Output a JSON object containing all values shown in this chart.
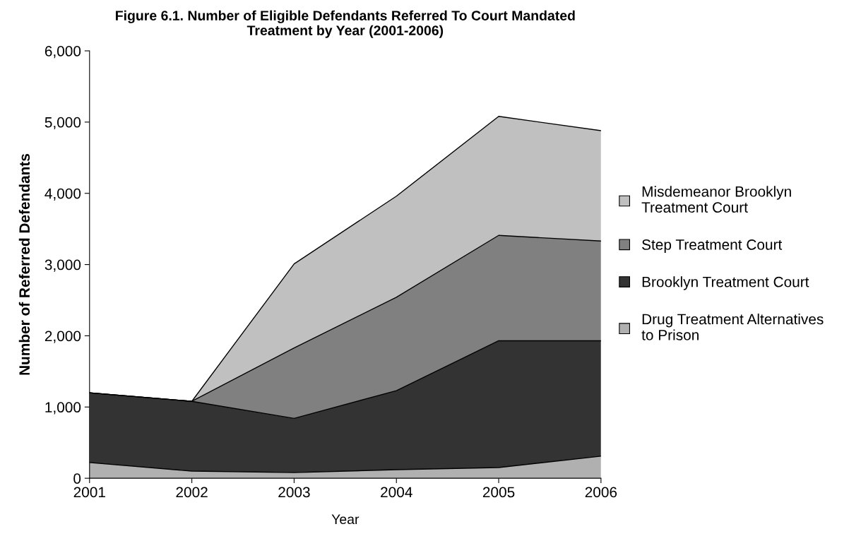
{
  "chart_data": {
    "type": "area",
    "title": "Figure 6.1. Number of Eligible Defendants Referred To Court Mandated\nTreatment by Year (2001-2006)",
    "xlabel": "Year",
    "ylabel": "Number of Referred Defendants",
    "categories": [
      "2001",
      "2002",
      "2003",
      "2004",
      "2005",
      "2006"
    ],
    "stacked": true,
    "ylim": [
      0,
      6000
    ],
    "yticks": [
      {
        "value": 0,
        "label": "0"
      },
      {
        "value": 1000,
        "label": "1,000"
      },
      {
        "value": 2000,
        "label": "2,000"
      },
      {
        "value": 3000,
        "label": "3,000"
      },
      {
        "value": 4000,
        "label": "4,000"
      },
      {
        "value": 5000,
        "label": "5,000"
      },
      {
        "value": 6000,
        "label": "6,000"
      }
    ],
    "grid": false,
    "legend": "right",
    "series": [
      {
        "name": "Drug Treatment Alternatives\nto Prison",
        "color": "#b0b0b0",
        "values": [
          220,
          100,
          80,
          120,
          150,
          310
        ]
      },
      {
        "name": "Brooklyn Treatment Court",
        "color": "#333333",
        "values": [
          980,
          980,
          760,
          1110,
          1780,
          1620
        ]
      },
      {
        "name": "Step Treatment Court",
        "color": "#808080",
        "values": [
          0,
          0,
          990,
          1310,
          1480,
          1400
        ]
      },
      {
        "name": "Misdemeanor Brooklyn\nTreatment Court",
        "color": "#c0c0c0",
        "values": [
          0,
          0,
          1180,
          1420,
          1670,
          1550
        ]
      }
    ]
  }
}
